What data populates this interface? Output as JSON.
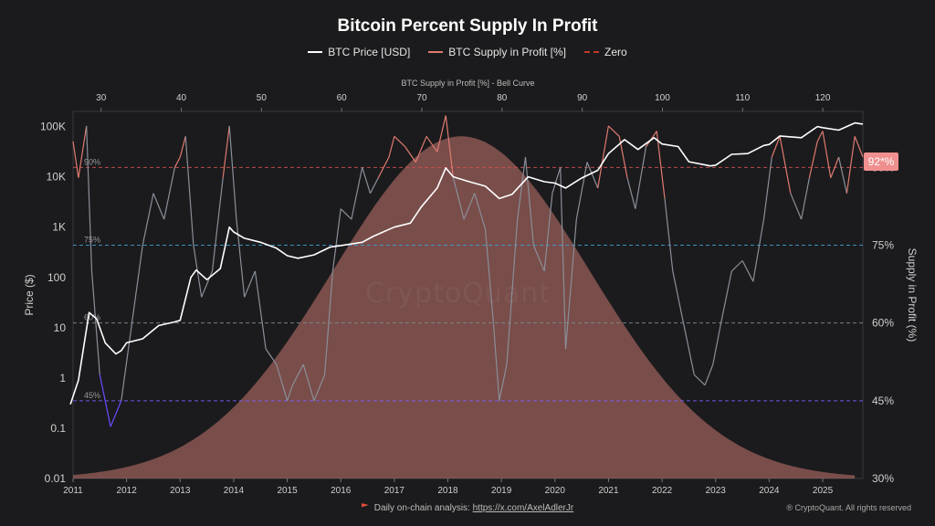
{
  "title": "Bitcoin Percent Supply In Profit",
  "legend": [
    {
      "label": "BTC Price [USD]",
      "color": "#ffffff",
      "style": "solid"
    },
    {
      "label": "BTC Supply in Profit [%]",
      "color": "#e07a70",
      "style": "solid"
    },
    {
      "label": "Zero",
      "color": "#c0392b",
      "style": "dashed"
    }
  ],
  "watermark": "CryptoQuant",
  "current_value_badge": "92*%",
  "footer": {
    "prefix": "Daily on-chain analysis: ",
    "link_text": "https://x.com/AxelAdlerJr",
    "copyright": "® CryptoQuant. All rights reserved"
  },
  "chart_data": {
    "type": "line",
    "title": "Bitcoin Percent Supply In Profit",
    "x_axis": {
      "ticks": [
        "2011",
        "2012",
        "2013",
        "2014",
        "2015",
        "2016",
        "2017",
        "2018",
        "2019",
        "2020",
        "2021",
        "2022",
        "2023",
        "2024",
        "2025"
      ],
      "range": [
        2011.0,
        2025.75
      ]
    },
    "top_axis": {
      "label": "BTC Supply in Profit [%] - Bell Curve",
      "ticks": [
        30,
        40,
        50,
        60,
        70,
        80,
        90,
        100,
        110,
        120
      ],
      "range": [
        26.5,
        125
      ]
    },
    "y_left": {
      "label": "Price ($)",
      "scale": "log",
      "ticks": [
        "0.01",
        "0.1",
        "1",
        "10",
        "100",
        "1K",
        "10K",
        "100K"
      ],
      "range": [
        0.01,
        200000
      ]
    },
    "y_right": {
      "label": "Supply in Profit (%)",
      "ticks": [
        "30%",
        "45%",
        "60%",
        "75%",
        "90%"
      ],
      "range": [
        30,
        100.8
      ]
    },
    "reference_lines": [
      {
        "value": 90,
        "label": "90%",
        "color": "#d05050"
      },
      {
        "value": 75,
        "label": "75%",
        "color": "#3a9fd6"
      },
      {
        "value": 60,
        "label": "60%",
        "color": "#7e8a8f"
      },
      {
        "value": 45,
        "label": "45%",
        "color": "#7a5cff"
      }
    ],
    "bell_curve": {
      "peak_x": 2018.25,
      "peak_value": 96,
      "sigma": 2.4,
      "color": "#c6766f"
    },
    "series": [
      {
        "name": "BTC Price [USD]",
        "color": "#ffffff",
        "x": [
          2010.95,
          2011.1,
          2011.3,
          2011.44,
          2011.6,
          2011.8,
          2011.9,
          2012.0,
          2012.3,
          2012.6,
          2012.9,
          2013.0,
          2013.2,
          2013.3,
          2013.5,
          2013.75,
          2013.92,
          2014.0,
          2014.2,
          2014.5,
          2014.8,
          2015.0,
          2015.2,
          2015.5,
          2015.8,
          2016.0,
          2016.4,
          2016.6,
          2016.9,
          2017.0,
          2017.3,
          2017.5,
          2017.8,
          2017.96,
          2018.1,
          2018.4,
          2018.7,
          2018.96,
          2019.2,
          2019.5,
          2019.8,
          2020.0,
          2020.2,
          2020.5,
          2020.8,
          2021.0,
          2021.3,
          2021.55,
          2021.85,
          2022.0,
          2022.3,
          2022.5,
          2022.9,
          2023.0,
          2023.3,
          2023.6,
          2023.9,
          2024.0,
          2024.2,
          2024.6,
          2024.9,
          2025.0,
          2025.3,
          2025.6,
          2025.75
        ],
        "y": [
          0.3,
          0.9,
          20,
          15,
          5,
          3,
          3.5,
          5,
          6,
          11,
          13,
          14,
          100,
          140,
          90,
          150,
          1000,
          800,
          600,
          500,
          380,
          270,
          240,
          280,
          400,
          430,
          500,
          650,
          900,
          1000,
          1200,
          2500,
          6000,
          15000,
          10000,
          8000,
          6500,
          3700,
          4500,
          10000,
          8000,
          7500,
          6000,
          9500,
          13500,
          29000,
          55000,
          35000,
          60000,
          45000,
          40000,
          20000,
          16500,
          17000,
          28000,
          29000,
          42000,
          44000,
          65000,
          60000,
          100000,
          95000,
          85000,
          118000,
          112000
        ]
      },
      {
        "name": "BTC Supply in Profit [%]",
        "color": "#8a8f98",
        "high_color": "#e07a70",
        "low_color": "#6a4cff",
        "x": [
          2011.0,
          2011.1,
          2011.25,
          2011.35,
          2011.5,
          2011.7,
          2011.9,
          2012.1,
          2012.3,
          2012.5,
          2012.7,
          2012.9,
          2013.0,
          2013.1,
          2013.25,
          2013.4,
          2013.6,
          2013.8,
          2013.92,
          2014.05,
          2014.2,
          2014.4,
          2014.6,
          2014.8,
          2015.0,
          2015.1,
          2015.3,
          2015.5,
          2015.7,
          2015.85,
          2016.0,
          2016.2,
          2016.4,
          2016.55,
          2016.7,
          2016.9,
          2017.0,
          2017.2,
          2017.4,
          2017.6,
          2017.8,
          2017.96,
          2018.1,
          2018.3,
          2018.5,
          2018.7,
          2018.85,
          2018.96,
          2019.1,
          2019.3,
          2019.45,
          2019.6,
          2019.8,
          2019.95,
          2020.1,
          2020.2,
          2020.4,
          2020.6,
          2020.8,
          2021.0,
          2021.2,
          2021.35,
          2021.5,
          2021.7,
          2021.9,
          2022.05,
          2022.2,
          2022.4,
          2022.6,
          2022.8,
          2022.95,
          2023.1,
          2023.3,
          2023.5,
          2023.7,
          2023.9,
          2024.05,
          2024.2,
          2024.4,
          2024.6,
          2024.75,
          2024.9,
          2025.0,
          2025.15,
          2025.3,
          2025.45,
          2025.6,
          2025.75
        ],
        "y": [
          95,
          88,
          98,
          70,
          50,
          40,
          45,
          60,
          75,
          85,
          80,
          90,
          92,
          96,
          75,
          65,
          70,
          88,
          98,
          80,
          65,
          70,
          55,
          52,
          45,
          48,
          52,
          45,
          50,
          70,
          82,
          80,
          90,
          85,
          88,
          92,
          96,
          94,
          91,
          96,
          93,
          100,
          88,
          80,
          85,
          78,
          60,
          45,
          52,
          80,
          92,
          75,
          70,
          85,
          90,
          55,
          80,
          91,
          86,
          98,
          96,
          88,
          82,
          94,
          97,
          84,
          70,
          60,
          50,
          48,
          52,
          60,
          70,
          72,
          68,
          80,
          92,
          96,
          85,
          80,
          88,
          95,
          97,
          88,
          92,
          85,
          96,
          92
        ]
      }
    ]
  }
}
